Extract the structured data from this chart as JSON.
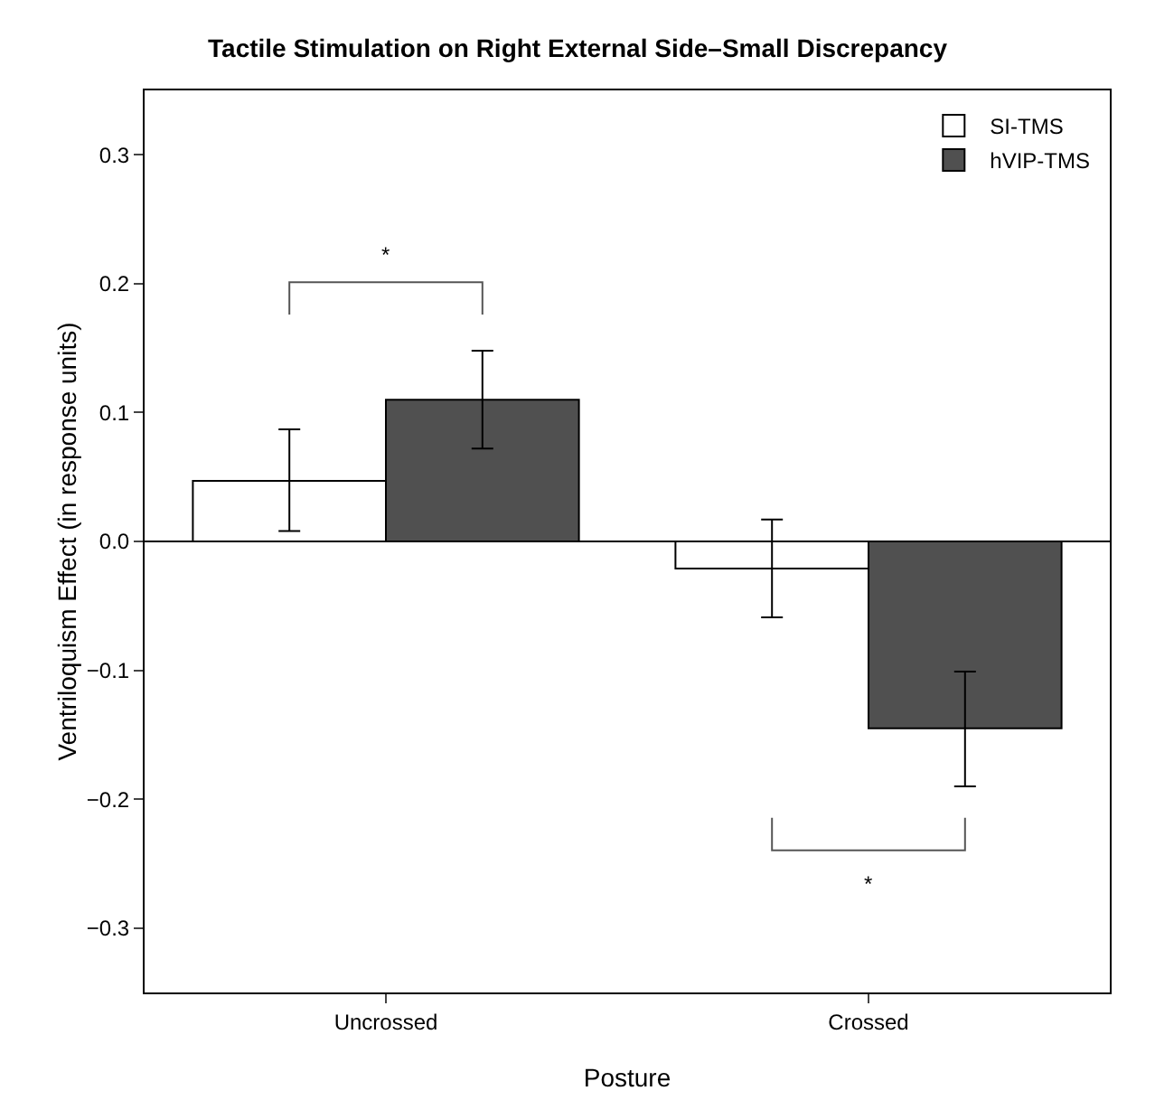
{
  "chart_data": {
    "type": "bar",
    "title": "Tactile Stimulation on Right External Side–Small Discrepancy",
    "xlabel": "Posture",
    "ylabel": "Ventriloquism Effect (in response units)",
    "categories": [
      "Uncrossed",
      "Crossed"
    ],
    "series": [
      {
        "name": "SI-TMS",
        "color": "#ffffff",
        "values": [
          0.047,
          -0.021
        ],
        "errors": [
          [
            0.008,
            0.087
          ],
          [
            -0.059,
            0.017
          ]
        ]
      },
      {
        "name": "hVIP-TMS",
        "color": "#505050",
        "values": [
          0.11,
          -0.145
        ],
        "errors": [
          [
            0.072,
            0.148
          ],
          [
            -0.19,
            -0.101
          ]
        ]
      }
    ],
    "ylim": [
      -0.35,
      0.35
    ],
    "yticks": [
      {
        "value": -0.3,
        "label": "−0.3"
      },
      {
        "value": -0.2,
        "label": "−0.2"
      },
      {
        "value": -0.1,
        "label": "−0.1"
      },
      {
        "value": 0,
        "label": "0.0"
      },
      {
        "value": 0.1,
        "label": "0.1"
      },
      {
        "value": 0.2,
        "label": "0.2"
      },
      {
        "value": 0.3,
        "label": "0.3"
      }
    ],
    "ref_lines": [
      {
        "axis": "y",
        "value": 0
      }
    ],
    "annotations": [
      "*",
      "*"
    ],
    "legend": "top right"
  }
}
